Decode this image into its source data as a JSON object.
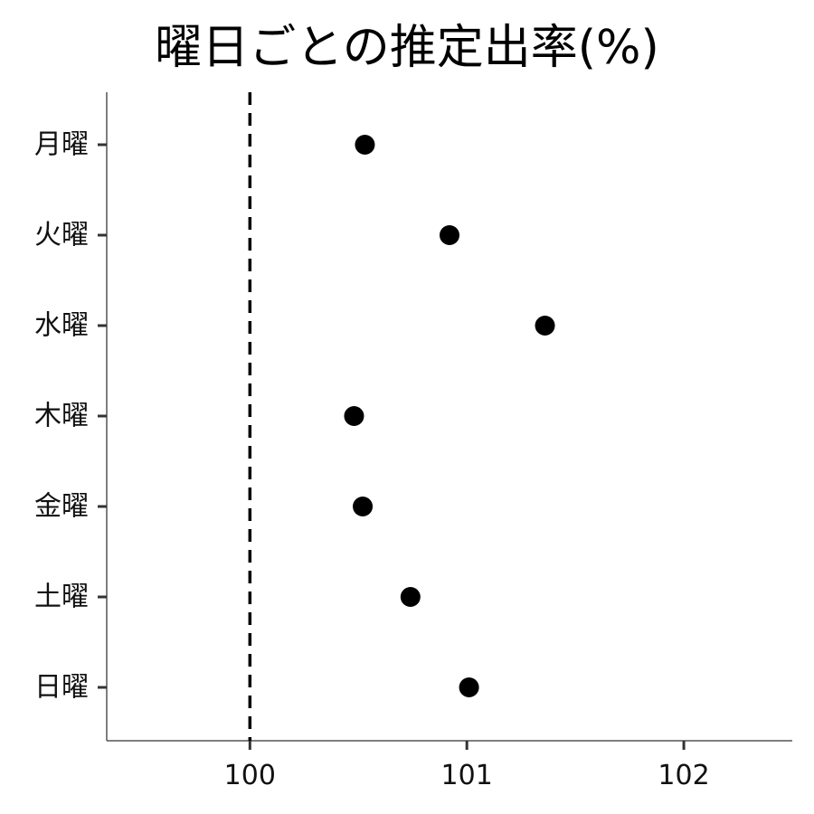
{
  "chart_data": {
    "type": "scatter",
    "title": "曜日ごとの推定出率(%)",
    "xlabel": "",
    "ylabel": "",
    "categories": [
      "月曜",
      "火曜",
      "水曜",
      "木曜",
      "金曜",
      "土曜",
      "日曜"
    ],
    "series": [
      {
        "values": [
          100.53,
          100.92,
          101.36,
          100.48,
          100.52,
          100.74,
          101.01
        ]
      }
    ],
    "xlim": [
      99.34,
      102.5
    ],
    "xticks": [
      100,
      101,
      102
    ],
    "reference_line": {
      "x": 100,
      "style": "dashed"
    },
    "grid": false,
    "legend": "none",
    "colors": {
      "point": "#000000",
      "axis": "#555555",
      "reference": "#000000"
    }
  }
}
